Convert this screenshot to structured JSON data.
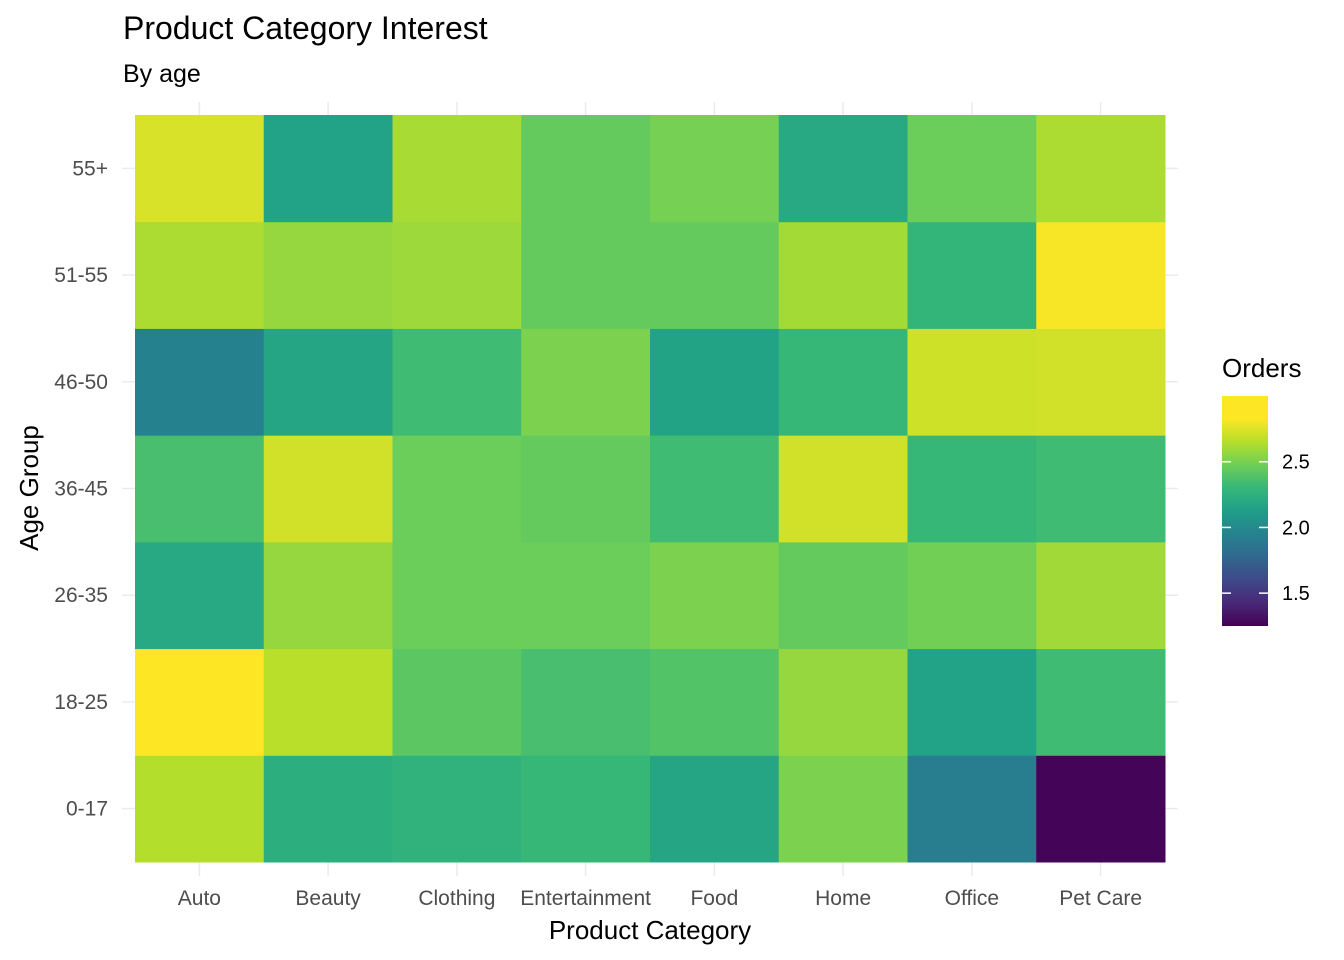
{
  "chart_data": {
    "type": "heatmap",
    "title": "Product Category Interest",
    "subtitle": "By age",
    "xlabel": "Product Category",
    "ylabel": "Age Group",
    "x": [
      "Auto",
      "Beauty",
      "Clothing",
      "Entertainment",
      "Food",
      "Home",
      "Office",
      "Pet Care"
    ],
    "y": [
      "0-17",
      "18-25",
      "26-35",
      "36-45",
      "46-50",
      "51-55",
      "55+"
    ],
    "values": [
      [
        2.8,
        2.35,
        2.38,
        2.42,
        2.28,
        2.65,
        2.0,
        1.27
      ],
      [
        3.0,
        2.82,
        2.55,
        2.48,
        2.52,
        2.72,
        2.25,
        2.45
      ],
      [
        2.3,
        2.72,
        2.6,
        2.6,
        2.65,
        2.58,
        2.62,
        2.75
      ],
      [
        2.48,
        2.88,
        2.6,
        2.58,
        2.45,
        2.88,
        2.42,
        2.45
      ],
      [
        2.02,
        2.28,
        2.45,
        2.65,
        2.26,
        2.42,
        2.87,
        2.88
      ],
      [
        2.78,
        2.72,
        2.74,
        2.58,
        2.58,
        2.76,
        2.4,
        2.98
      ],
      [
        2.9,
        2.25,
        2.77,
        2.58,
        2.63,
        2.3,
        2.6,
        2.78
      ]
    ],
    "colorscale": "viridis",
    "zlim": [
      1.25,
      3.0
    ],
    "legend": {
      "title": "Orders",
      "ticks": [
        1.5,
        2.0,
        2.5
      ],
      "tick_labels": [
        "1.5",
        "2.0",
        "2.5"
      ],
      "placement": "right"
    },
    "grid": true
  }
}
